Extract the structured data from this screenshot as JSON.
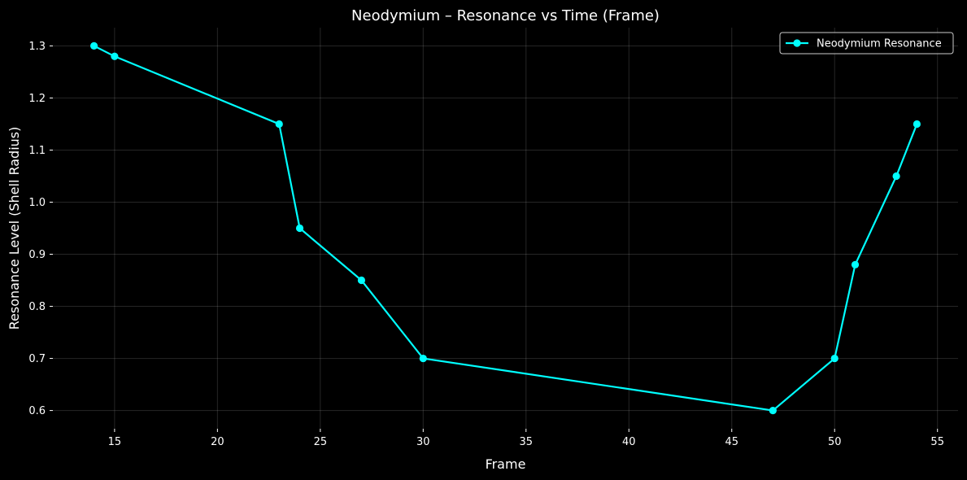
{
  "chart_data": {
    "type": "line",
    "title": "Neodymium – Resonance vs Time (Frame)",
    "xlabel": "Frame",
    "ylabel": "Resonance Level (Shell Radius)",
    "xlim": [
      12.0,
      56.0
    ],
    "ylim": [
      0.565,
      1.335
    ],
    "xticks": [
      15,
      20,
      25,
      30,
      35,
      40,
      45,
      50,
      55
    ],
    "yticks": [
      0.6,
      0.7,
      0.8,
      0.9,
      1.0,
      1.1,
      1.2,
      1.3
    ],
    "grid": true,
    "legend_position": "top-right",
    "series": [
      {
        "name": "Neodymium Resonance",
        "color": "#00ffff",
        "marker": "circle",
        "x": [
          14,
          15,
          23,
          24,
          27,
          30,
          47,
          50,
          51,
          53,
          54
        ],
        "y": [
          1.3,
          1.28,
          1.15,
          0.95,
          0.85,
          0.7,
          0.6,
          0.7,
          0.88,
          1.05,
          1.15
        ]
      }
    ]
  }
}
